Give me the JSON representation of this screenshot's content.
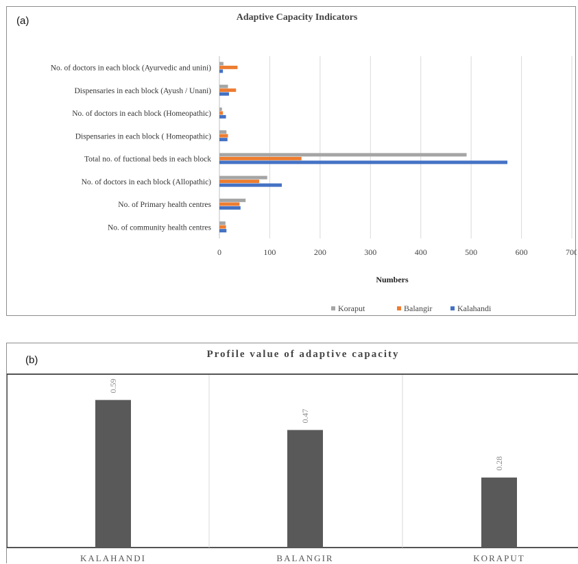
{
  "chart_data": [
    {
      "panel_label": "(a)",
      "type": "bar",
      "orientation": "horizontal",
      "title": "Adaptive Capacity Indicators",
      "xlabel": "Numbers",
      "ylabel": "",
      "xlim": [
        0,
        700
      ],
      "xticks": [
        0,
        100,
        200,
        300,
        400,
        500,
        600,
        700
      ],
      "grid": true,
      "legend_position": "bottom",
      "categories": [
        "No. of doctors in each block (Ayurvedic and unini)",
        "Dispensaries in each block (Ayush / Unani)",
        "No. of doctors in each block (Homeopathic)",
        "Dispensaries in each block ( Homeopathic)",
        "Total no. of fuctional beds in each block",
        "No. of doctors in each block (Allopathic)",
        "No. of Primary health centres",
        "No. of community health centres"
      ],
      "series": [
        {
          "name": "Koraput",
          "color": "#a5a5a5",
          "values": [
            8,
            17,
            5,
            14,
            491,
            95,
            52,
            12
          ]
        },
        {
          "name": "Balangir",
          "color": "#ed7d31",
          "values": [
            36,
            33,
            7,
            17,
            163,
            79,
            40,
            13
          ]
        },
        {
          "name": "Kalahandi",
          "color": "#4472c4",
          "values": [
            7,
            19,
            13,
            16,
            572,
            124,
            42,
            14
          ]
        }
      ]
    },
    {
      "panel_label": "(b)",
      "type": "bar",
      "orientation": "vertical",
      "title": "Profile value of adaptive capacity",
      "categories": [
        "KALAHANDI",
        "BALANGIR",
        "KORAPUT"
      ],
      "values": [
        0.59,
        0.47,
        0.28
      ],
      "data_labels": [
        "0.59",
        "0.47",
        "0.28"
      ],
      "bar_color": "#595959",
      "ylim": [
        0,
        0.7
      ]
    }
  ]
}
